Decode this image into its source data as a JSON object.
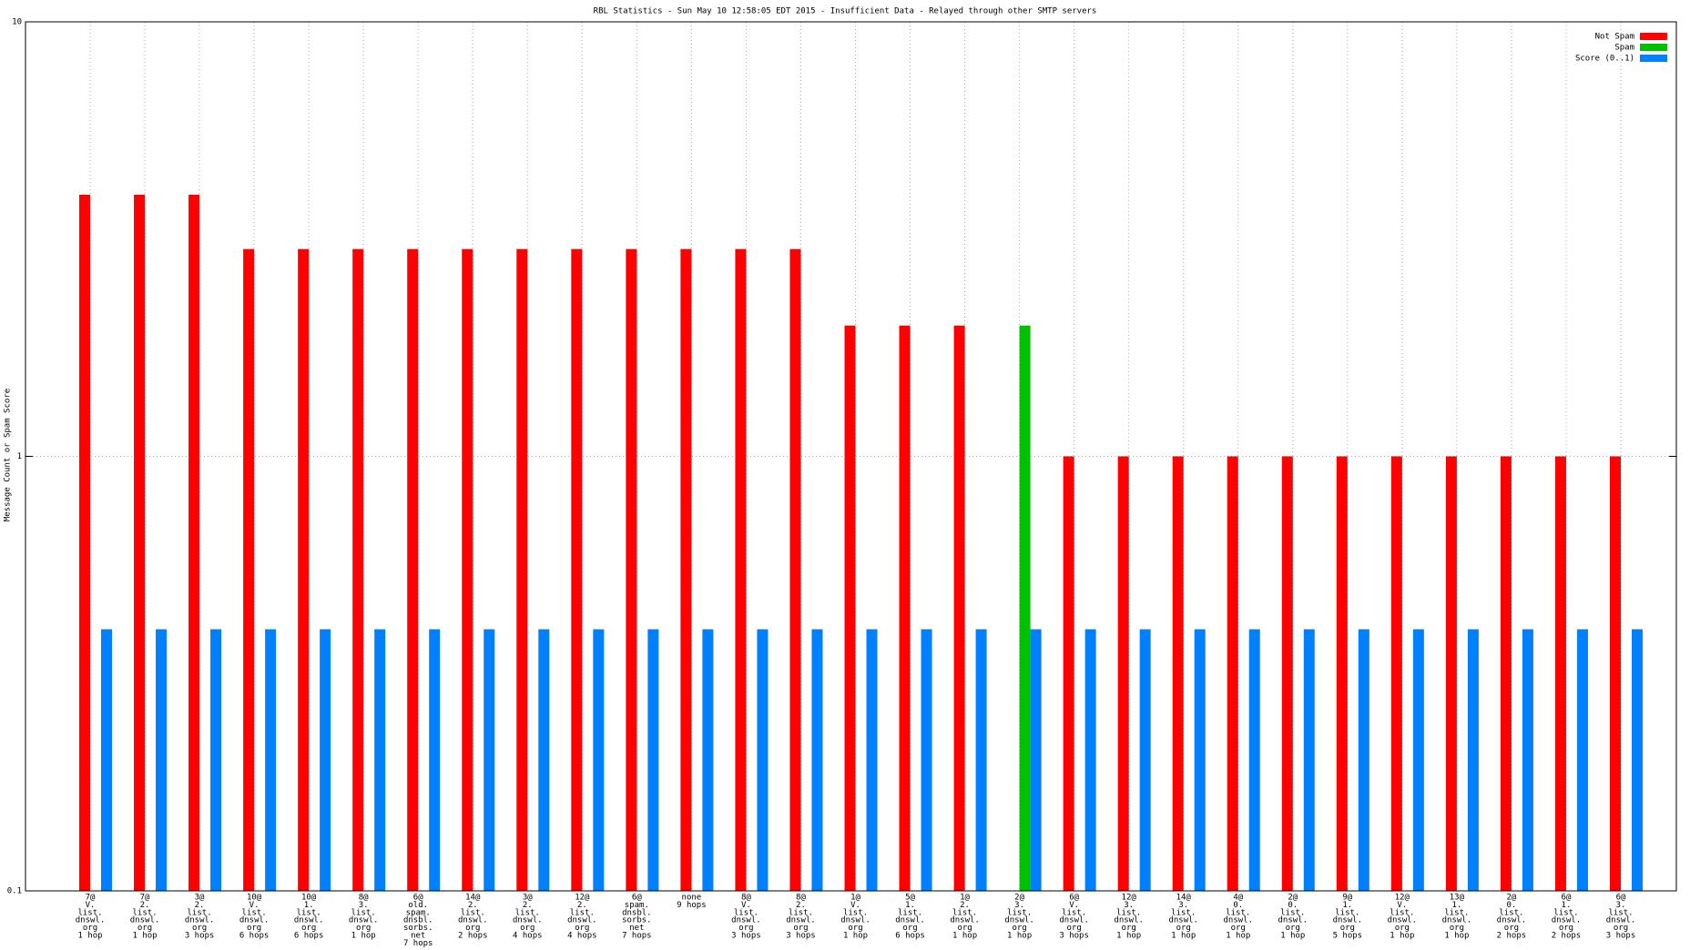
{
  "chart_data": {
    "type": "bar",
    "title": "RBL Statistics - Sun May 10 12:58:05 EDT 2015 - Insufficient Data - Relayed through other SMTP servers",
    "y_label": "Message Count or Spam Score",
    "log_scale": true,
    "grid": true,
    "legend": "top-right",
    "ylim": [
      0.1,
      10
    ],
    "yticks": [
      0.1,
      1,
      10
    ],
    "categories": [
      [
        "7@",
        "V.",
        "list.",
        "dnswl.",
        "org",
        "1 hop"
      ],
      [
        "7@",
        "2.",
        "list.",
        "dnswl.",
        "org",
        "1 hop"
      ],
      [
        "3@",
        "2.",
        "list.",
        "dnswl.",
        "org",
        "3 hops"
      ],
      [
        "10@",
        "V.",
        "list.",
        "dnswl.",
        "org",
        "6 hops"
      ],
      [
        "10@",
        "1.",
        "list.",
        "dnswl.",
        "org",
        "6 hops"
      ],
      [
        "8@",
        "3.",
        "list.",
        "dnswl.",
        "org",
        "1 hop"
      ],
      [
        "6@",
        "old.",
        "spam.",
        "dnsbl.",
        "sorbs.",
        "net",
        "7 hops"
      ],
      [
        "14@",
        "2.",
        "list.",
        "dnswl.",
        "org",
        "2 hops"
      ],
      [
        "3@",
        "2.",
        "list.",
        "dnswl.",
        "org",
        "4 hops"
      ],
      [
        "12@",
        "2.",
        "list.",
        "dnswl.",
        "org",
        "4 hops"
      ],
      [
        "6@",
        "spam.",
        "dnsbl.",
        "sorbs.",
        "net",
        "7 hops"
      ],
      [
        "none",
        "9 hops"
      ],
      [
        "8@",
        "V.",
        "list.",
        "dnswl.",
        "org",
        "3 hops"
      ],
      [
        "8@",
        "2.",
        "list.",
        "dnswl.",
        "org",
        "3 hops"
      ],
      [
        "1@",
        "V.",
        "list.",
        "dnswl.",
        "org",
        "1 hop"
      ],
      [
        "5@",
        "1.",
        "list.",
        "dnswl.",
        "org",
        "6 hops"
      ],
      [
        "1@",
        "2.",
        "list.",
        "dnswl.",
        "org",
        "1 hop"
      ],
      [
        "2@",
        "3.",
        "list.",
        "dnswl.",
        "org",
        "1 hop"
      ],
      [
        "6@",
        "V.",
        "list.",
        "dnswl.",
        "org",
        "3 hops"
      ],
      [
        "12@",
        "3.",
        "list.",
        "dnswl.",
        "org",
        "1 hop"
      ],
      [
        "14@",
        "3.",
        "list.",
        "dnswl.",
        "org",
        "1 hop"
      ],
      [
        "4@",
        "0.",
        "list.",
        "dnswl.",
        "org",
        "1 hop"
      ],
      [
        "2@",
        "0.",
        "list.",
        "dnswl.",
        "org",
        "1 hop"
      ],
      [
        "9@",
        "1.",
        "list.",
        "dnswl.",
        "org",
        "5 hops"
      ],
      [
        "12@",
        "V.",
        "list.",
        "dnswl.",
        "org",
        "1 hop"
      ],
      [
        "13@",
        "1.",
        "list.",
        "dnswl.",
        "org",
        "1 hop"
      ],
      [
        "2@",
        "0.",
        "list.",
        "dnswl.",
        "org",
        "2 hops"
      ],
      [
        "6@",
        "1.",
        "list.",
        "dnswl.",
        "org",
        "2 hops"
      ],
      [
        "6@",
        "3.",
        "list.",
        "dnswl.",
        "org",
        "3 hops"
      ]
    ],
    "series": [
      {
        "name": "Not Spam",
        "color": "#ff0000",
        "values": [
          4,
          4,
          4,
          3,
          3,
          3,
          3,
          3,
          3,
          3,
          3,
          3,
          3,
          3,
          2,
          2,
          2,
          null,
          1,
          1,
          1,
          1,
          1,
          1,
          1,
          1,
          1,
          1,
          1
        ]
      },
      {
        "name": "Spam",
        "color": "#00c000",
        "values": [
          null,
          null,
          null,
          null,
          null,
          null,
          null,
          null,
          null,
          null,
          null,
          null,
          null,
          null,
          null,
          null,
          null,
          2,
          null,
          null,
          null,
          null,
          null,
          null,
          null,
          null,
          null,
          null,
          null
        ]
      },
      {
        "name": "Score (0..1)",
        "color": "#0080ff",
        "values": [
          0.4,
          0.4,
          0.4,
          0.4,
          0.4,
          0.4,
          0.4,
          0.4,
          0.4,
          0.4,
          0.4,
          0.4,
          0.4,
          0.4,
          0.4,
          0.4,
          0.4,
          0.4,
          0.4,
          0.4,
          0.4,
          0.4,
          0.4,
          0.4,
          0.4,
          0.4,
          0.4,
          0.4,
          0.4
        ]
      }
    ]
  }
}
